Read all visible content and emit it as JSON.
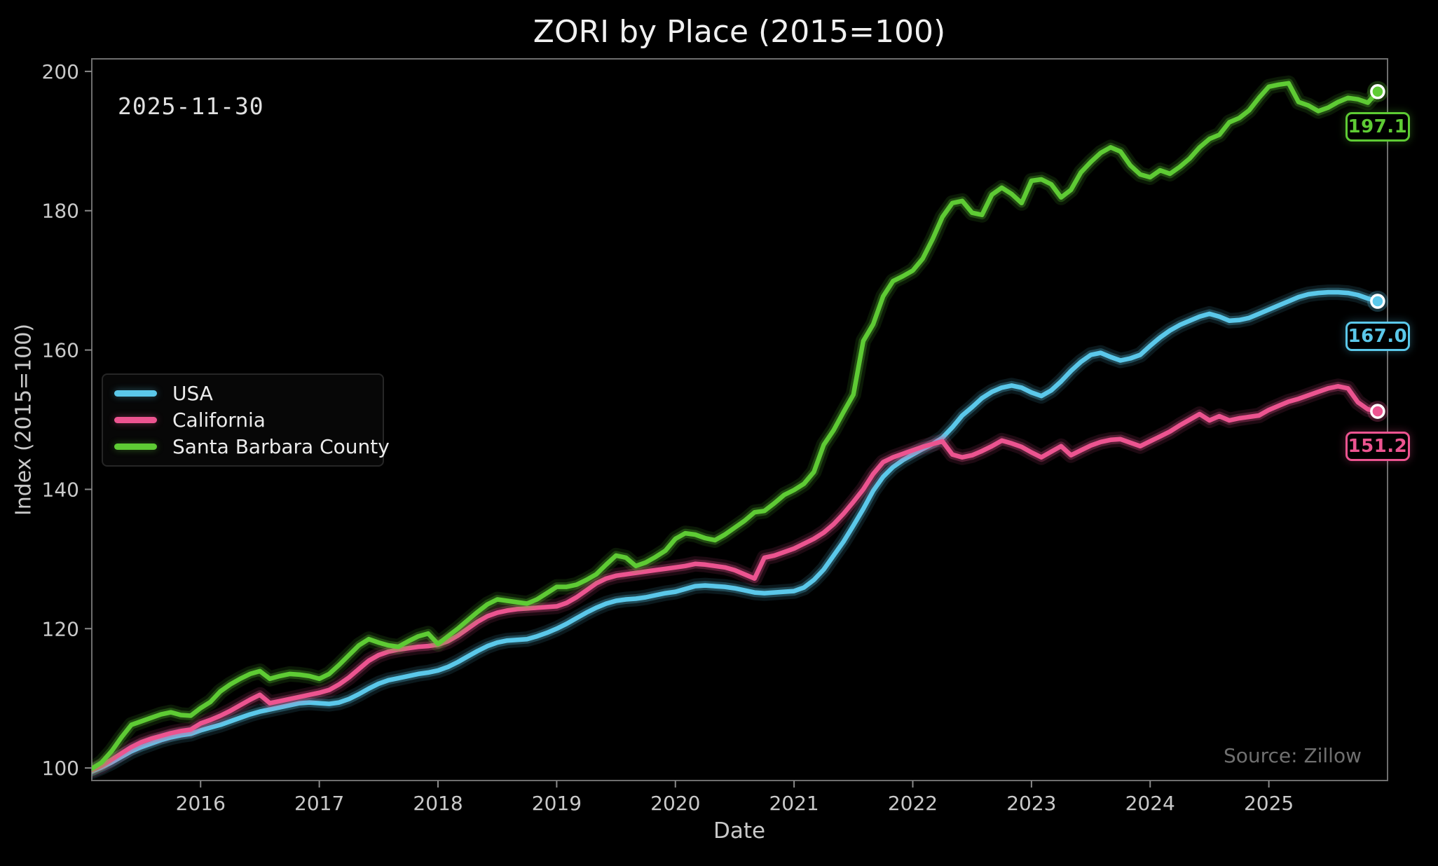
{
  "title": "ZORI by Place (2015=100)",
  "annotation_date": "2025-11-30",
  "source": "Source: Zillow",
  "xlabel": "Date",
  "ylabel": "Index (2015=100)",
  "colors": {
    "background": "#000000",
    "spine": "#6e6e6e",
    "tick": "#8a8a8a",
    "tick_label": "#c9c9c9",
    "title": "#f0f0f0",
    "legend_border": "#262626",
    "usa": "#5bc8ea",
    "california": "#ec5490",
    "santa_barbara": "#5ecb34"
  },
  "chart_data": {
    "type": "line",
    "title": "ZORI by Place (2015=100)",
    "xlabel": "Date",
    "ylabel": "Index (2015=100)",
    "annotation": "2025-11-30",
    "source": "Source: Zillow",
    "grid": false,
    "legend_position": "center left",
    "x_unit": "decimal_year_monthly",
    "x_start": 2015.0833,
    "x_step": 0.0833,
    "xlim": [
      2015.0833,
      2026.0
    ],
    "ylim": [
      98.2,
      201.8
    ],
    "x_tick_labels": [
      "2016",
      "2017",
      "2018",
      "2019",
      "2020",
      "2021",
      "2022",
      "2023",
      "2024",
      "2025"
    ],
    "x_tick_values": [
      2016,
      2017,
      2018,
      2019,
      2020,
      2021,
      2022,
      2023,
      2024,
      2025
    ],
    "y_tick_values": [
      100,
      120,
      140,
      160,
      180,
      200
    ],
    "series": [
      {
        "name": "USA",
        "color": "#5bc8ea",
        "end_label": "167.0",
        "final_value": 167.0,
        "values": [
          99.5,
          100.1,
          100.8,
          101.6,
          102.4,
          103.0,
          103.5,
          104.0,
          104.4,
          104.7,
          104.9,
          105.4,
          105.8,
          106.2,
          106.7,
          107.2,
          107.7,
          108.1,
          108.4,
          108.7,
          109.0,
          109.3,
          109.4,
          109.3,
          109.2,
          109.4,
          109.9,
          110.6,
          111.4,
          112.1,
          112.6,
          112.9,
          113.2,
          113.5,
          113.7,
          114.0,
          114.5,
          115.2,
          116.0,
          116.8,
          117.5,
          118.0,
          118.3,
          118.4,
          118.5,
          118.9,
          119.4,
          120.0,
          120.7,
          121.5,
          122.3,
          123.0,
          123.6,
          124.0,
          124.2,
          124.3,
          124.5,
          124.8,
          125.1,
          125.3,
          125.7,
          126.1,
          126.2,
          126.1,
          126.0,
          125.8,
          125.5,
          125.2,
          125.1,
          125.2,
          125.3,
          125.4,
          125.9,
          127.0,
          128.5,
          130.5,
          132.5,
          134.8,
          137.2,
          139.8,
          141.8,
          143.2,
          144.2,
          145.0,
          145.8,
          146.5,
          147.4,
          148.9,
          150.6,
          151.8,
          153.1,
          154.0,
          154.6,
          154.9,
          154.6,
          153.9,
          153.4,
          154.2,
          155.5,
          157.0,
          158.3,
          159.3,
          159.6,
          159.0,
          158.5,
          158.8,
          159.3,
          160.6,
          161.8,
          162.8,
          163.6,
          164.2,
          164.8,
          165.2,
          164.8,
          164.2,
          164.3,
          164.6,
          165.2,
          165.8,
          166.4,
          167.0,
          167.6,
          168.0,
          168.2,
          168.3,
          168.3,
          168.2,
          167.9,
          167.4,
          167.0
        ]
      },
      {
        "name": "California",
        "color": "#ec5490",
        "end_label": "151.2",
        "final_value": 151.2,
        "values": [
          99.7,
          100.3,
          101.2,
          102.1,
          103.0,
          103.7,
          104.2,
          104.6,
          105.0,
          105.3,
          105.5,
          106.4,
          106.9,
          107.5,
          108.2,
          109.0,
          109.8,
          110.5,
          109.3,
          109.6,
          109.9,
          110.2,
          110.5,
          110.8,
          111.2,
          112.0,
          113.0,
          114.2,
          115.4,
          116.2,
          116.7,
          117.0,
          117.2,
          117.4,
          117.5,
          117.7,
          118.2,
          119.0,
          120.0,
          121.0,
          121.8,
          122.3,
          122.6,
          122.8,
          122.9,
          123.0,
          123.1,
          123.2,
          123.7,
          124.5,
          125.5,
          126.5,
          127.2,
          127.6,
          127.8,
          128.0,
          128.2,
          128.4,
          128.6,
          128.8,
          129.0,
          129.3,
          129.2,
          129.0,
          128.8,
          128.4,
          127.8,
          127.2,
          130.2,
          130.5,
          131.0,
          131.5,
          132.2,
          132.9,
          133.8,
          135.0,
          136.5,
          138.2,
          140.0,
          142.2,
          143.9,
          144.6,
          145.1,
          145.6,
          146.1,
          146.5,
          146.9,
          145.0,
          144.6,
          144.9,
          145.5,
          146.2,
          147.0,
          146.6,
          146.1,
          145.3,
          144.6,
          145.4,
          146.2,
          144.9,
          145.6,
          146.3,
          146.8,
          147.1,
          147.2,
          146.7,
          146.2,
          146.9,
          147.6,
          148.3,
          149.2,
          150.0,
          150.8,
          149.9,
          150.5,
          149.9,
          150.2,
          150.4,
          150.6,
          151.4,
          152.0,
          152.6,
          153.0,
          153.5,
          154.0,
          154.5,
          154.8,
          154.5,
          152.5,
          151.5,
          151.2
        ]
      },
      {
        "name": "Santa Barbara County",
        "color": "#5ecb34",
        "end_label": "197.1",
        "final_value": 197.1,
        "values": [
          99.9,
          100.8,
          102.4,
          104.4,
          106.2,
          106.7,
          107.2,
          107.7,
          108.0,
          107.6,
          107.5,
          108.6,
          109.5,
          111.0,
          112.0,
          112.8,
          113.5,
          113.9,
          112.8,
          113.2,
          113.5,
          113.4,
          113.2,
          112.8,
          113.5,
          114.8,
          116.2,
          117.6,
          118.5,
          118.0,
          117.6,
          117.4,
          118.2,
          118.9,
          119.3,
          117.8,
          118.9,
          120.0,
          121.2,
          122.4,
          123.5,
          124.2,
          124.0,
          123.8,
          123.6,
          124.2,
          125.1,
          126.0,
          126.0,
          126.3,
          127.0,
          127.8,
          129.2,
          130.5,
          130.2,
          129.0,
          129.5,
          130.3,
          131.2,
          132.9,
          133.7,
          133.5,
          133.0,
          132.7,
          133.5,
          134.5,
          135.5,
          136.7,
          136.9,
          138.0,
          139.2,
          139.9,
          140.8,
          142.5,
          146.4,
          148.5,
          151.1,
          153.6,
          161.3,
          163.7,
          167.7,
          169.9,
          170.6,
          171.4,
          173.1,
          175.9,
          179.1,
          181.1,
          181.4,
          179.7,
          179.4,
          182.3,
          183.3,
          182.4,
          181.1,
          184.3,
          184.5,
          183.8,
          181.9,
          183.0,
          185.5,
          187.0,
          188.3,
          189.1,
          188.5,
          186.5,
          185.2,
          184.8,
          185.8,
          185.3,
          186.3,
          187.5,
          189.1,
          190.3,
          190.9,
          192.7,
          193.3,
          194.4,
          196.2,
          197.8,
          198.1,
          198.3,
          195.6,
          195.1,
          194.3,
          194.8,
          195.6,
          196.2,
          196.0,
          195.5,
          197.1
        ]
      }
    ]
  }
}
